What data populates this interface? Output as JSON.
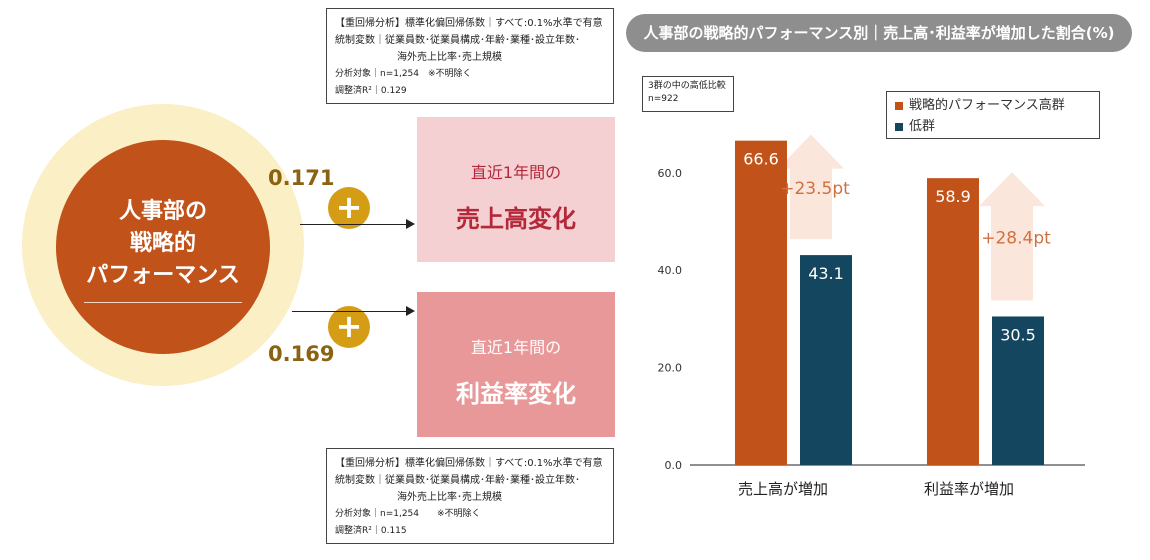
{
  "note_top": {
    "line1": "【重回帰分析】標準化偏回帰係数｜すべて:0.1%水準で有意",
    "line2": "統制変数｜従業員数･従業員構成･年齢･業種･設立年数･",
    "line3": "海外売上比率･売上規模",
    "line4": "分析対象｜n=1,254　※不明除く",
    "line5": "調整済R²｜0.129"
  },
  "note_bottom": {
    "line1": "【重回帰分析】標準化偏回帰係数｜すべて:0.1%水準で有意",
    "line2": "統制変数｜従業員数･従業員構成･年齢･業種･設立年数･",
    "line3": "海外売上比率･売上規模",
    "line4": "分析対象｜n=1,254　　※不明除く",
    "line5": "調整済R²｜0.115"
  },
  "center": {
    "line1": "人事部の",
    "line2": "戦略的",
    "line3": "パフォーマンス"
  },
  "coefficients": {
    "sales": "0.171",
    "profit": "0.169",
    "plus_symbol": "+"
  },
  "targets": {
    "sales_small": "直近1年間の",
    "sales_big": "売上高変化",
    "profit_small": "直近1年間の",
    "profit_big": "利益率変化"
  },
  "chart_title": "人事部の戦略的パフォーマンス別｜売上高･利益率が増加した割合(%)",
  "sample_note": {
    "line1": "3群の中の高低比較",
    "line2": "n=922"
  },
  "colors": {
    "high": "#c0521a",
    "low": "#14465f",
    "diff_arrow": "#fbe6dc",
    "diff_text": "#d07040",
    "sales_box": "#f5d0d2",
    "profit_box": "#e99899",
    "sales_text": "#b3283a",
    "profit_text": "#ffffff"
  },
  "chart_data": {
    "type": "bar",
    "categories": [
      "売上高が増加",
      "利益率が増加"
    ],
    "series": [
      {
        "name": "戦略的パフォーマンス高群",
        "values": [
          66.6,
          58.9
        ]
      },
      {
        "name": "低群",
        "values": [
          43.1,
          30.5
        ]
      }
    ],
    "differences": [
      "+23.5pt",
      "+28.4pt"
    ],
    "yticks": [
      "0.0",
      "20.0",
      "40.0",
      "60.0"
    ],
    "ylim": [
      0,
      80
    ],
    "legend_position": "top-right",
    "grid": false
  }
}
